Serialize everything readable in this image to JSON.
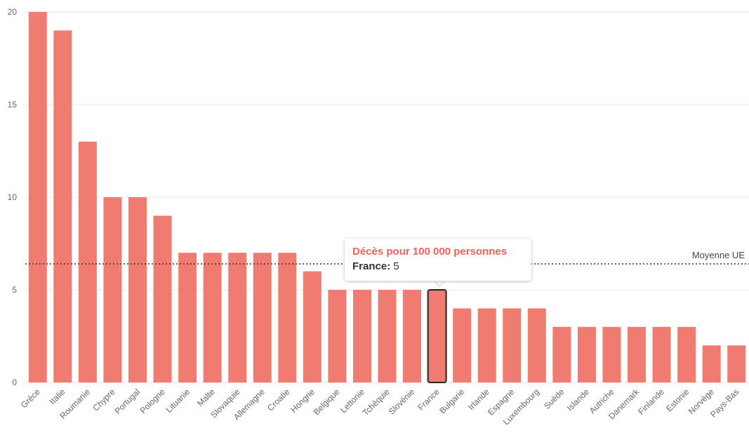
{
  "chart_data": {
    "type": "bar",
    "categories": [
      "Grèce",
      "Italie",
      "Roumanie",
      "Chypre",
      "Portugal",
      "Pologne",
      "Lituanie",
      "Malte",
      "Slovaquie",
      "Allemagne",
      "Croatie",
      "Hongrie",
      "Belgique",
      "Lettonie",
      "Tchéquie",
      "Slovénie",
      "France",
      "Bulgarie",
      "Irlande",
      "Espagne",
      "Luxembourg",
      "Suède",
      "Islande",
      "Autriche",
      "Danemark",
      "Finlande",
      "Estonie",
      "Norvège",
      "Pays-Bas"
    ],
    "values": [
      20,
      19,
      13,
      10,
      10,
      9,
      7,
      7,
      7,
      7,
      7,
      6,
      5,
      5,
      5,
      5,
      5,
      4,
      4,
      4,
      4,
      3,
      3,
      3,
      3,
      3,
      3,
      2,
      2
    ],
    "ylim": [
      0,
      20
    ],
    "yticks": [
      0,
      5,
      10,
      15,
      20
    ],
    "grid": true,
    "bar_color": "#f07b70",
    "highlighted": "France",
    "reference_line": {
      "label": "Moyenne UE",
      "value": 6.4
    }
  },
  "tooltip": {
    "title": "Décès pour 100 000 personnes",
    "label": "France:",
    "value": "5",
    "title_color": "#f0625a"
  }
}
